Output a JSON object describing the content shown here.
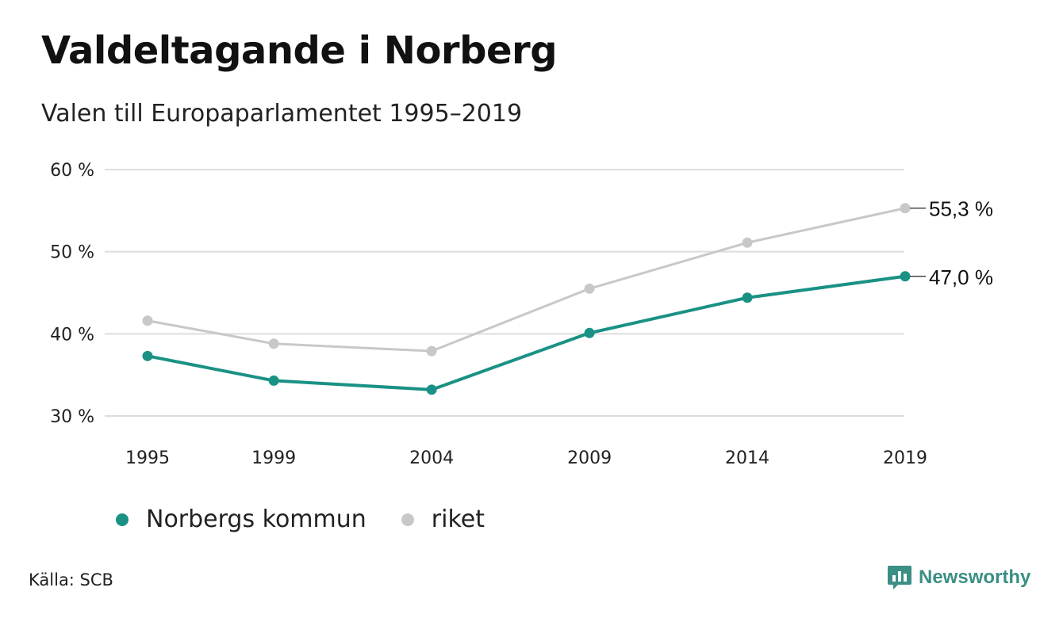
{
  "chart_data": {
    "type": "line",
    "title": "Valdeltagande i Norberg",
    "subtitle": "Valen till Europaparlamentet 1995–2019",
    "x": [
      "1995",
      "1999",
      "2004",
      "2009",
      "2014",
      "2019"
    ],
    "x_positions": [
      1995,
      1999,
      2004,
      2009,
      2014,
      2019
    ],
    "ylim": [
      30,
      60
    ],
    "yticks": [
      30,
      40,
      50,
      60
    ],
    "ytick_labels": [
      "30 %",
      "40 %",
      "50 %",
      "60 %"
    ],
    "grid": true,
    "legend_placement": "bottom-left",
    "series": [
      {
        "name": "Norbergs kommun",
        "values": [
          37.3,
          34.3,
          33.2,
          40.1,
          44.4,
          47.0
        ],
        "color": "#1a9185",
        "end_label": "47,0 %"
      },
      {
        "name": "riket",
        "values": [
          41.6,
          38.8,
          37.9,
          45.5,
          51.1,
          55.3
        ],
        "color": "#c8c8c8",
        "end_label": "55,3 %"
      }
    ]
  },
  "footer": {
    "source": "Källa: SCB",
    "brand": "Newsworthy"
  },
  "colors": {
    "grid": "#dddddd",
    "accent": "#1a9185",
    "secondary": "#c8c8c8",
    "brand": "#3b8f84"
  }
}
